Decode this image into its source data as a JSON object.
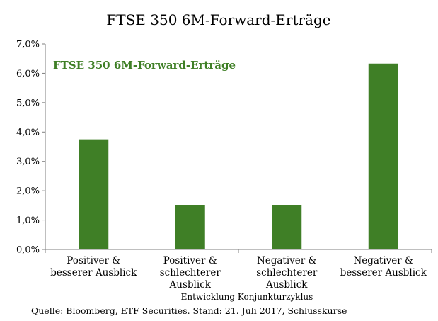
{
  "chart_data": {
    "type": "bar",
    "title": "FTSE 350 6M-Forward-Erträge",
    "legend_label": "FTSE 350 6M-Forward-Erträge",
    "xlabel": "Entwicklung Konjunkturzyklus",
    "ylabel": "",
    "categories": [
      [
        "Positiver &",
        "besserer Ausblick"
      ],
      [
        "Positiver &",
        "schlechterer",
        "Ausblick"
      ],
      [
        "Negativer &",
        "schlechterer",
        "Ausblick"
      ],
      [
        "Negativer &",
        "besserer Ausblick"
      ]
    ],
    "values": [
      3.75,
      1.5,
      1.5,
      6.33
    ],
    "ylim": [
      0,
      7
    ],
    "yticks": [
      0,
      1,
      2,
      3,
      4,
      5,
      6,
      7
    ],
    "ytick_labels": [
      "0,0%",
      "1,0%",
      "2,0%",
      "3,0%",
      "4,0%",
      "5,0%",
      "6,0%",
      "7,0%"
    ],
    "grid": false,
    "legend_position": "top-left",
    "bar_color": "#3f7f26",
    "legend_color": "#3f7f26"
  },
  "source": "Quelle: Bloomberg, ETF Securities. Stand: 21. Juli 2017, Schlusskurse"
}
